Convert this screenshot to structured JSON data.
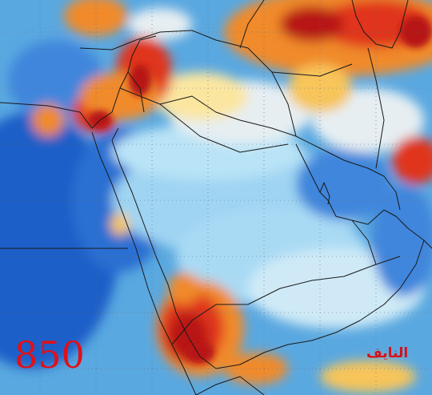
{
  "map": {
    "pressure_level": "850",
    "signature": "النايف",
    "colors": {
      "deep_blue": "#1f5fc8",
      "blue": "#3f86dc",
      "light_blue": "#7ec0ec",
      "pale_blue": "#b9e3f6",
      "near_white": "#e6eef2",
      "pale_yellow": "#fbe6a0",
      "yellow": "#f7c55a",
      "orange": "#f08a2a",
      "red": "#e0351c",
      "dark_red": "#b81412",
      "border_line": "#1a1a1a",
      "grid_line": "#5a6a7a",
      "label_red": "#e0101a"
    }
  }
}
